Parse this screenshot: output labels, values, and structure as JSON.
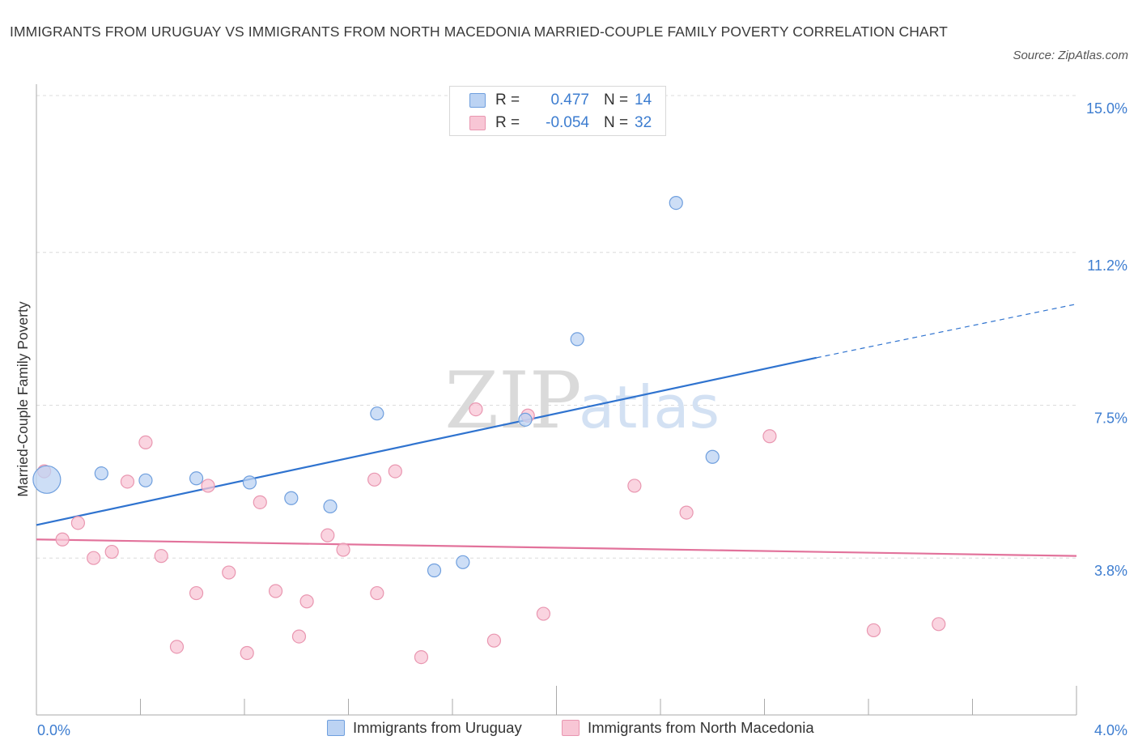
{
  "header": {
    "title": "IMMIGRANTS FROM URUGUAY VS IMMIGRANTS FROM NORTH MACEDONIA MARRIED-COUPLE FAMILY POVERTY CORRELATION CHART",
    "source": "Source: ZipAtlas.com"
  },
  "watermark": {
    "zip": "ZIP",
    "atlas": "atlas"
  },
  "colors": {
    "blue_fill": "#bcd3f3",
    "blue_stroke": "#6f9fde",
    "blue_line": "#2f73cf",
    "pink_fill": "#f8c6d5",
    "pink_stroke": "#e996b0",
    "pink_line": "#e2729b",
    "value_text": "#3d7dd0",
    "grid": "#dcdcdc"
  },
  "legend": {
    "rows": [
      {
        "r_label": "R =",
        "r_value": "0.477",
        "n_label": "N =",
        "n_value": "14"
      },
      {
        "r_label": "R =",
        "r_value": "-0.054",
        "n_label": "N =",
        "n_value": "32"
      }
    ]
  },
  "chart_data": {
    "type": "scatter",
    "title": "IMMIGRANTS FROM URUGUAY VS IMMIGRANTS FROM NORTH MACEDONIA MARRIED-COUPLE FAMILY POVERTY CORRELATION CHART",
    "xlabel": "",
    "ylabel": "Married-Couple Family Poverty",
    "xlim": [
      0.0,
      4.0
    ],
    "ylim": [
      0.0,
      15.0
    ],
    "x_tick_labels": [
      "0.0%",
      "4.0%"
    ],
    "y_ticks": [
      3.8,
      7.5,
      11.2,
      15.0
    ],
    "y_tick_labels": [
      "3.8%",
      "7.5%",
      "11.2%",
      "15.0%"
    ],
    "legend_position": "bottom",
    "series": [
      {
        "name": "Immigrants from Uruguay",
        "color": "blue",
        "R": 0.477,
        "N": 14,
        "points": [
          {
            "x": 0.04,
            "y": 5.7,
            "large": true
          },
          {
            "x": 0.25,
            "y": 5.85
          },
          {
            "x": 0.42,
            "y": 5.68
          },
          {
            "x": 0.615,
            "y": 5.73
          },
          {
            "x": 0.82,
            "y": 5.63
          },
          {
            "x": 0.98,
            "y": 5.25
          },
          {
            "x": 1.13,
            "y": 5.05
          },
          {
            "x": 1.31,
            "y": 7.3
          },
          {
            "x": 1.53,
            "y": 3.5
          },
          {
            "x": 1.64,
            "y": 3.7
          },
          {
            "x": 1.88,
            "y": 7.15
          },
          {
            "x": 2.08,
            "y": 9.1
          },
          {
            "x": 2.46,
            "y": 12.4
          },
          {
            "x": 2.6,
            "y": 6.25
          }
        ],
        "trend": {
          "x0": 0.0,
          "y0": 4.6,
          "x1": 3.0,
          "y1": 8.65,
          "dash_to_x": 4.0,
          "dash_to_y": 9.95
        }
      },
      {
        "name": "Immigrants from North Macedonia",
        "color": "pink",
        "R": -0.054,
        "N": 32,
        "points": [
          {
            "x": 0.03,
            "y": 5.9
          },
          {
            "x": 0.1,
            "y": 4.25
          },
          {
            "x": 0.16,
            "y": 4.65
          },
          {
            "x": 0.22,
            "y": 3.8
          },
          {
            "x": 0.29,
            "y": 3.95
          },
          {
            "x": 0.35,
            "y": 5.65
          },
          {
            "x": 0.42,
            "y": 6.6
          },
          {
            "x": 0.48,
            "y": 3.85
          },
          {
            "x": 0.54,
            "y": 1.65
          },
          {
            "x": 0.615,
            "y": 2.95
          },
          {
            "x": 0.66,
            "y": 5.55
          },
          {
            "x": 0.74,
            "y": 3.45
          },
          {
            "x": 0.81,
            "y": 1.5
          },
          {
            "x": 0.86,
            "y": 5.15
          },
          {
            "x": 0.92,
            "y": 3.0
          },
          {
            "x": 1.01,
            "y": 1.9
          },
          {
            "x": 1.04,
            "y": 2.75
          },
          {
            "x": 1.12,
            "y": 4.35
          },
          {
            "x": 1.18,
            "y": 4.0
          },
          {
            "x": 1.3,
            "y": 5.7
          },
          {
            "x": 1.31,
            "y": 2.95
          },
          {
            "x": 1.38,
            "y": 5.9
          },
          {
            "x": 1.48,
            "y": 1.4
          },
          {
            "x": 1.69,
            "y": 7.4
          },
          {
            "x": 1.76,
            "y": 1.8
          },
          {
            "x": 1.89,
            "y": 7.25
          },
          {
            "x": 1.95,
            "y": 2.45
          },
          {
            "x": 2.3,
            "y": 5.55
          },
          {
            "x": 2.5,
            "y": 4.9
          },
          {
            "x": 2.82,
            "y": 6.75
          },
          {
            "x": 3.22,
            "y": 2.05
          },
          {
            "x": 3.47,
            "y": 2.2
          }
        ],
        "trend": {
          "x0": 0.0,
          "y0": 4.25,
          "x1": 4.0,
          "y1": 3.85
        }
      }
    ]
  }
}
